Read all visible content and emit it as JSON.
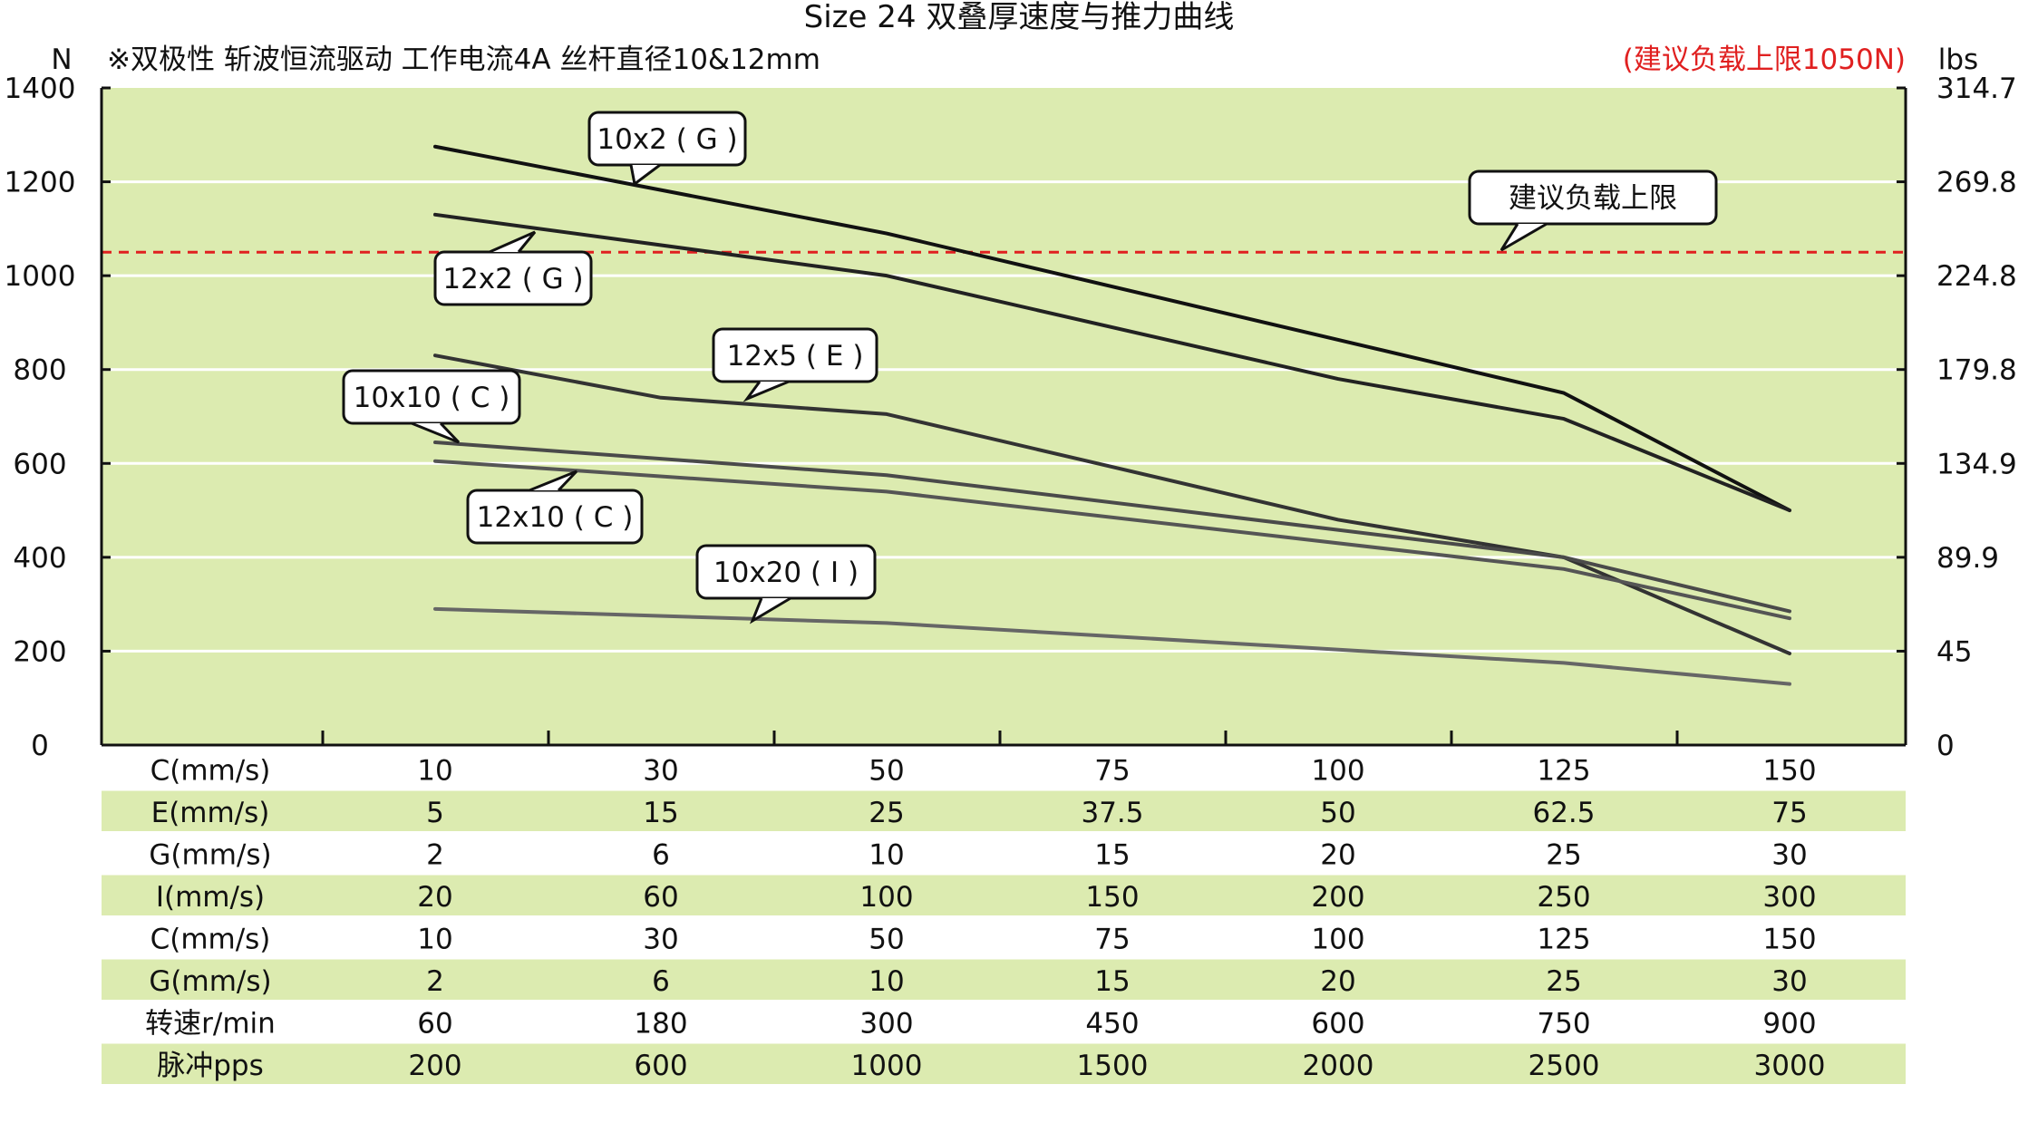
{
  "chart_data": {
    "type": "line",
    "title": "Size 24 双叠厚速度与推力曲线",
    "subtitle": "※双极性 斩波恒流驱动 工作电流4A 丝杆直径10&12mm",
    "note": "(建议负载上限1050N)",
    "y_left_unit": "N",
    "y_right_unit": "lbs",
    "ylim": [
      0,
      1400
    ],
    "y_ticks": [
      0,
      200,
      400,
      600,
      800,
      1000,
      1200,
      1400
    ],
    "y_right_ticks": [
      "0",
      "45",
      "89.9",
      "134.9",
      "179.8",
      "224.8",
      "269.8",
      "314.7"
    ],
    "x_positions": [
      10,
      30,
      50,
      75,
      100,
      125,
      150
    ],
    "recommended_limit": {
      "value": 1050,
      "label": "建议负载上限",
      "color": "#e02020"
    },
    "plot_background": "#dcebb0",
    "series": [
      {
        "name": "10x2 ( G )",
        "color": "#111111",
        "x": [
          10,
          50,
          125,
          150
        ],
        "values": [
          1275,
          1090,
          750,
          500
        ]
      },
      {
        "name": "12x2 ( G )",
        "color": "#222222",
        "x": [
          10,
          50,
          100,
          125,
          150
        ],
        "values": [
          1130,
          1000,
          780,
          695,
          500
        ]
      },
      {
        "name": "12x5 ( E )",
        "color": "#333333",
        "x": [
          10,
          30,
          50,
          100,
          125,
          150
        ],
        "values": [
          830,
          740,
          705,
          480,
          400,
          195
        ]
      },
      {
        "name": "10x10 ( C )",
        "color": "#4a4a4a",
        "x": [
          10,
          50,
          125,
          150
        ],
        "values": [
          645,
          575,
          400,
          285
        ]
      },
      {
        "name": "12x10 ( C )",
        "color": "#555555",
        "x": [
          10,
          50,
          125,
          150
        ],
        "values": [
          605,
          540,
          375,
          270
        ]
      },
      {
        "name": "10x20 ( I )",
        "color": "#666666",
        "x": [
          10,
          50,
          125,
          150
        ],
        "values": [
          290,
          260,
          175,
          130
        ]
      }
    ],
    "table": {
      "rows": [
        {
          "label": "C(mm/s)",
          "values": [
            "10",
            "30",
            "50",
            "75",
            "100",
            "125",
            "150"
          ]
        },
        {
          "label": "E(mm/s)",
          "values": [
            "5",
            "15",
            "25",
            "37.5",
            "50",
            "62.5",
            "75"
          ]
        },
        {
          "label": "G(mm/s)",
          "values": [
            "2",
            "6",
            "10",
            "15",
            "20",
            "25",
            "30"
          ]
        },
        {
          "label": "I(mm/s)",
          "values": [
            "20",
            "60",
            "100",
            "150",
            "200",
            "250",
            "300"
          ]
        },
        {
          "label": "C(mm/s)",
          "values": [
            "10",
            "30",
            "50",
            "75",
            "100",
            "125",
            "150"
          ]
        },
        {
          "label": "G(mm/s)",
          "values": [
            "2",
            "6",
            "10",
            "15",
            "20",
            "25",
            "30"
          ]
        },
        {
          "label": "转速r/min",
          "values": [
            "60",
            "180",
            "300",
            "450",
            "600",
            "750",
            "900"
          ]
        },
        {
          "label": "脉冲pps",
          "values": [
            "200",
            "600",
            "1000",
            "1500",
            "2000",
            "2500",
            "3000"
          ]
        }
      ],
      "stripe_color": "#dcebb0"
    }
  }
}
